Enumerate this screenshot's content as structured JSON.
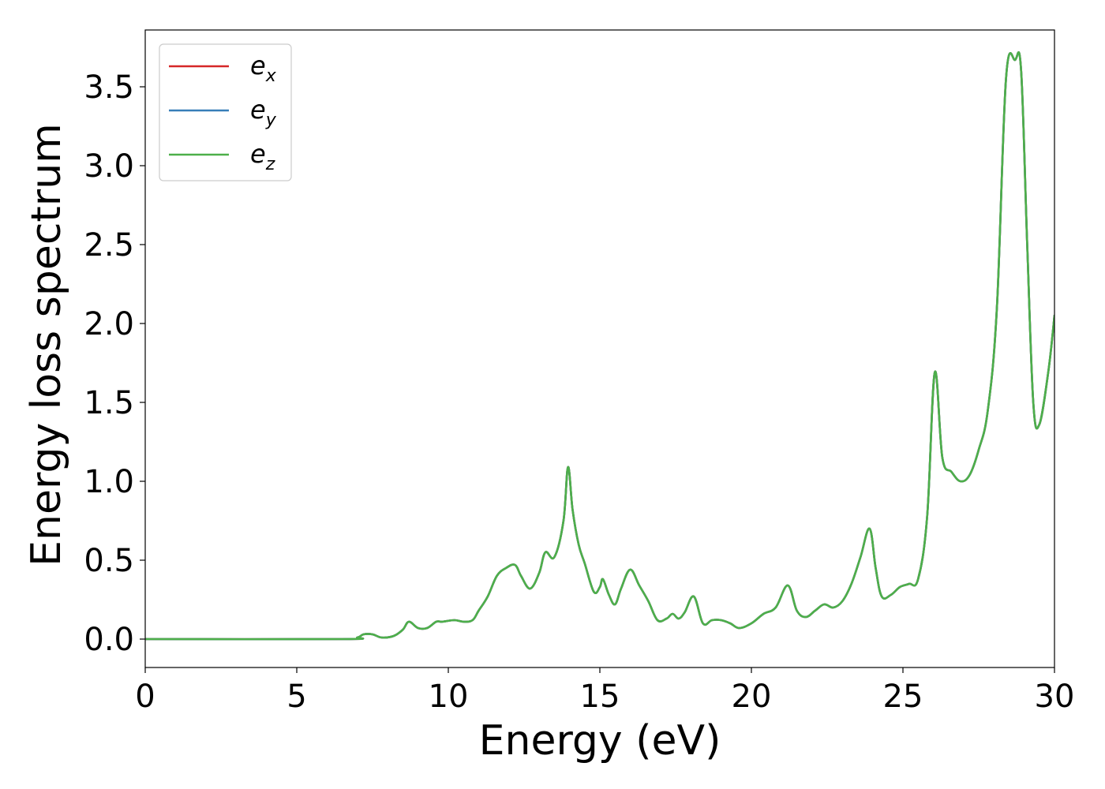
{
  "chart_data": {
    "type": "line",
    "xlabel": "Energy (eV)",
    "ylabel": "Energy loss spectrum",
    "xlim": [
      0,
      30
    ],
    "ylim": [
      -0.18,
      3.86
    ],
    "xticks": [
      "0",
      "5",
      "10",
      "15",
      "20",
      "25",
      "30"
    ],
    "yticks": [
      "0.0",
      "0.5",
      "1.0",
      "1.5",
      "2.0",
      "2.5",
      "3.0",
      "3.5"
    ],
    "grid": false,
    "legend_position": "top-left",
    "series": [
      {
        "name": "e",
        "subscript": "x",
        "color": "#d62728",
        "x": [
          0,
          6.5,
          7.0,
          7.2,
          7.5,
          7.8,
          8.2,
          8.5,
          8.7,
          9.0,
          9.3,
          9.6,
          9.8,
          10.2,
          10.5,
          10.8,
          11.0,
          11.3,
          11.6,
          11.9,
          12.2,
          12.4,
          12.7,
          13.0,
          13.2,
          13.5,
          13.8,
          13.95,
          14.1,
          14.3,
          14.5,
          14.8,
          15.0,
          15.1,
          15.3,
          15.5,
          15.7,
          16.0,
          16.3,
          16.6,
          16.9,
          17.2,
          17.4,
          17.6,
          17.8,
          18.1,
          18.4,
          18.7,
          19.0,
          19.3,
          19.6,
          20.0,
          20.4,
          20.8,
          21.2,
          21.5,
          21.8,
          22.1,
          22.4,
          22.7,
          23.0,
          23.3,
          23.6,
          23.9,
          24.1,
          24.3,
          24.6,
          24.9,
          25.2,
          25.5,
          25.8,
          26.05,
          26.3,
          26.6,
          26.9,
          27.2,
          27.5,
          27.8,
          28.1,
          28.4,
          28.7,
          28.9,
          29.1,
          29.3,
          29.5,
          29.8,
          30.0
        ],
        "y": [
          0.0,
          0.0,
          0.01,
          0.03,
          0.03,
          0.01,
          0.02,
          0.06,
          0.11,
          0.07,
          0.07,
          0.11,
          0.11,
          0.12,
          0.11,
          0.12,
          0.18,
          0.27,
          0.4,
          0.45,
          0.47,
          0.4,
          0.32,
          0.42,
          0.55,
          0.52,
          0.75,
          1.09,
          0.82,
          0.6,
          0.48,
          0.3,
          0.33,
          0.38,
          0.28,
          0.22,
          0.32,
          0.44,
          0.34,
          0.24,
          0.12,
          0.13,
          0.16,
          0.13,
          0.17,
          0.27,
          0.1,
          0.12,
          0.12,
          0.1,
          0.07,
          0.1,
          0.16,
          0.2,
          0.34,
          0.18,
          0.14,
          0.18,
          0.22,
          0.2,
          0.24,
          0.35,
          0.52,
          0.7,
          0.45,
          0.27,
          0.28,
          0.33,
          0.35,
          0.38,
          0.78,
          1.69,
          1.15,
          1.06,
          1.0,
          1.04,
          1.2,
          1.45,
          2.1,
          3.55,
          3.67,
          3.6,
          2.5,
          1.5,
          1.36,
          1.7,
          2.05
        ]
      },
      {
        "name": "e",
        "subscript": "y",
        "color": "#377eb8",
        "x": [
          0,
          6.5,
          7.0,
          7.2,
          7.5,
          7.8,
          8.2,
          8.5,
          8.7,
          9.0,
          9.3,
          9.6,
          9.8,
          10.2,
          10.5,
          10.8,
          11.0,
          11.3,
          11.6,
          11.9,
          12.2,
          12.4,
          12.7,
          13.0,
          13.2,
          13.5,
          13.8,
          13.95,
          14.1,
          14.3,
          14.5,
          14.8,
          15.0,
          15.1,
          15.3,
          15.5,
          15.7,
          16.0,
          16.3,
          16.6,
          16.9,
          17.2,
          17.4,
          17.6,
          17.8,
          18.1,
          18.4,
          18.7,
          19.0,
          19.3,
          19.6,
          20.0,
          20.4,
          20.8,
          21.2,
          21.5,
          21.8,
          22.1,
          22.4,
          22.7,
          23.0,
          23.3,
          23.6,
          23.9,
          24.1,
          24.3,
          24.6,
          24.9,
          25.2,
          25.5,
          25.8,
          26.05,
          26.3,
          26.6,
          26.9,
          27.2,
          27.5,
          27.8,
          28.1,
          28.4,
          28.7,
          28.9,
          29.1,
          29.3,
          29.5,
          29.8,
          30.0
        ],
        "y": [
          0.0,
          0.0,
          0.01,
          0.03,
          0.03,
          0.01,
          0.02,
          0.06,
          0.11,
          0.07,
          0.07,
          0.11,
          0.11,
          0.12,
          0.11,
          0.12,
          0.18,
          0.27,
          0.4,
          0.45,
          0.47,
          0.4,
          0.32,
          0.42,
          0.55,
          0.52,
          0.75,
          1.09,
          0.82,
          0.6,
          0.48,
          0.3,
          0.33,
          0.38,
          0.28,
          0.22,
          0.32,
          0.44,
          0.34,
          0.24,
          0.12,
          0.13,
          0.16,
          0.13,
          0.17,
          0.27,
          0.1,
          0.12,
          0.12,
          0.1,
          0.07,
          0.1,
          0.16,
          0.2,
          0.34,
          0.18,
          0.14,
          0.18,
          0.22,
          0.2,
          0.24,
          0.35,
          0.52,
          0.7,
          0.45,
          0.27,
          0.28,
          0.33,
          0.35,
          0.38,
          0.78,
          1.69,
          1.15,
          1.06,
          1.0,
          1.04,
          1.2,
          1.45,
          2.1,
          3.55,
          3.67,
          3.6,
          2.5,
          1.5,
          1.36,
          1.7,
          2.05
        ]
      },
      {
        "name": "e",
        "subscript": "z",
        "color": "#4daf4a",
        "x": [
          0,
          6.5,
          7.0,
          7.2,
          7.5,
          7.8,
          8.2,
          8.5,
          8.7,
          9.0,
          9.3,
          9.6,
          9.8,
          10.2,
          10.5,
          10.8,
          11.0,
          11.3,
          11.6,
          11.9,
          12.2,
          12.4,
          12.7,
          13.0,
          13.2,
          13.5,
          13.8,
          13.95,
          14.1,
          14.3,
          14.5,
          14.8,
          15.0,
          15.1,
          15.3,
          15.5,
          15.7,
          16.0,
          16.3,
          16.6,
          16.9,
          17.2,
          17.4,
          17.6,
          17.8,
          18.1,
          18.4,
          18.7,
          19.0,
          19.3,
          19.6,
          20.0,
          20.4,
          20.8,
          21.2,
          21.5,
          21.8,
          22.1,
          22.4,
          22.7,
          23.0,
          23.3,
          23.6,
          23.9,
          24.1,
          24.3,
          24.6,
          24.9,
          25.2,
          25.5,
          25.8,
          26.05,
          26.3,
          26.6,
          26.9,
          27.2,
          27.5,
          27.8,
          28.1,
          28.4,
          28.7,
          28.9,
          29.1,
          29.3,
          29.5,
          29.8,
          30.0
        ],
        "y": [
          0.0,
          0.0,
          0.01,
          0.03,
          0.03,
          0.01,
          0.02,
          0.06,
          0.11,
          0.07,
          0.07,
          0.11,
          0.11,
          0.12,
          0.11,
          0.12,
          0.18,
          0.27,
          0.4,
          0.45,
          0.47,
          0.4,
          0.32,
          0.42,
          0.55,
          0.52,
          0.75,
          1.09,
          0.82,
          0.6,
          0.48,
          0.3,
          0.33,
          0.38,
          0.28,
          0.22,
          0.32,
          0.44,
          0.34,
          0.24,
          0.12,
          0.13,
          0.16,
          0.13,
          0.17,
          0.27,
          0.1,
          0.12,
          0.12,
          0.1,
          0.07,
          0.1,
          0.16,
          0.2,
          0.34,
          0.18,
          0.14,
          0.18,
          0.22,
          0.2,
          0.24,
          0.35,
          0.52,
          0.7,
          0.45,
          0.27,
          0.28,
          0.33,
          0.35,
          0.38,
          0.78,
          1.69,
          1.15,
          1.06,
          1.0,
          1.04,
          1.2,
          1.45,
          2.1,
          3.55,
          3.67,
          3.6,
          2.5,
          1.5,
          1.36,
          1.7,
          2.05
        ]
      }
    ]
  }
}
